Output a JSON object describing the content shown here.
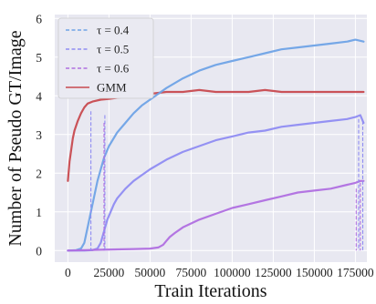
{
  "chart_data": {
    "type": "line",
    "xlabel": "Train Iterations",
    "ylabel": "Number of Pseudo GT/Image",
    "xlim": [
      -8000,
      182000
    ],
    "ylim": [
      -0.3,
      6.1
    ],
    "x_ticks": [
      0,
      25000,
      50000,
      75000,
      100000,
      125000,
      150000,
      175000
    ],
    "x_tick_labels": [
      "0",
      "25000",
      "50000",
      "75000",
      "100000",
      "125000",
      "150000",
      "175000"
    ],
    "y_ticks": [
      0,
      1,
      2,
      3,
      4,
      5,
      6
    ],
    "y_tick_labels": [
      "0",
      "1",
      "2",
      "3",
      "4",
      "5",
      "6"
    ],
    "grid": true,
    "background": "#e8e8f1",
    "legend_position": "top-left",
    "series": [
      {
        "name": "τ = 0.4",
        "legend_label": "τ = 0.4",
        "style": "dashed",
        "color": "#6fa3e6",
        "x": [
          0,
          5000,
          8000,
          10000,
          12000,
          14000,
          16000,
          18000,
          20000,
          22000,
          25000,
          30000,
          35000,
          40000,
          45000,
          50000,
          60000,
          70000,
          80000,
          90000,
          100000,
          110000,
          120000,
          130000,
          140000,
          150000,
          160000,
          170000,
          175000,
          180000
        ],
        "y": [
          0,
          0.01,
          0.05,
          0.2,
          0.6,
          1.0,
          1.4,
          1.8,
          2.1,
          2.4,
          2.7,
          3.05,
          3.3,
          3.55,
          3.75,
          3.9,
          4.2,
          4.45,
          4.65,
          4.8,
          4.9,
          5.0,
          5.1,
          5.2,
          5.25,
          5.3,
          5.35,
          5.4,
          5.45,
          5.4
        ]
      },
      {
        "name": "τ = 0.5",
        "legend_label": "τ = 0.5",
        "style": "dashed",
        "color": "#8f8cf2",
        "x": [
          0,
          10000,
          15000,
          18000,
          20000,
          22000,
          24000,
          26000,
          28000,
          30000,
          35000,
          40000,
          45000,
          50000,
          60000,
          70000,
          80000,
          90000,
          100000,
          110000,
          120000,
          130000,
          140000,
          150000,
          160000,
          170000,
          175000,
          178000,
          180000
        ],
        "y": [
          0,
          0,
          0.01,
          0.05,
          0.2,
          0.5,
          0.8,
          1.0,
          1.2,
          1.35,
          1.6,
          1.8,
          1.95,
          2.1,
          2.35,
          2.55,
          2.7,
          2.85,
          2.95,
          3.05,
          3.1,
          3.2,
          3.25,
          3.3,
          3.35,
          3.4,
          3.45,
          3.5,
          3.3
        ]
      },
      {
        "name": "τ = 0.6",
        "legend_label": "τ = 0.6",
        "style": "dashed",
        "color": "#b06fe0",
        "x": [
          0,
          20000,
          40000,
          50000,
          55000,
          58000,
          60000,
          62000,
          65000,
          70000,
          75000,
          80000,
          90000,
          100000,
          110000,
          120000,
          130000,
          140000,
          150000,
          160000,
          170000,
          175000,
          178000,
          180000
        ],
        "y": [
          0,
          0.02,
          0.04,
          0.05,
          0.08,
          0.15,
          0.25,
          0.35,
          0.45,
          0.6,
          0.7,
          0.8,
          0.95,
          1.1,
          1.2,
          1.3,
          1.4,
          1.5,
          1.55,
          1.6,
          1.7,
          1.75,
          1.8,
          1.8
        ]
      },
      {
        "name": "GMM",
        "legend_label": "GMM",
        "style": "solid",
        "color": "#c84a4f",
        "x": [
          0,
          1000,
          2000,
          3000,
          4000,
          6000,
          8000,
          10000,
          12000,
          15000,
          20000,
          25000,
          30000,
          40000,
          50000,
          60000,
          70000,
          80000,
          90000,
          100000,
          110000,
          120000,
          130000,
          140000,
          150000,
          160000,
          170000,
          180000
        ],
        "y": [
          1.8,
          2.3,
          2.6,
          2.9,
          3.1,
          3.35,
          3.55,
          3.7,
          3.8,
          3.85,
          3.9,
          3.92,
          3.95,
          4.0,
          4.05,
          4.1,
          4.1,
          4.15,
          4.1,
          4.1,
          4.1,
          4.15,
          4.1,
          4.1,
          4.1,
          4.1,
          4.1,
          4.1
        ]
      }
    ],
    "drop_lines": [
      {
        "series": 1,
        "x": 14000,
        "y_top": 3.6
      },
      {
        "series": 1,
        "x": 22500,
        "y_top": 3.5
      },
      {
        "series": 1,
        "x": 177000,
        "y_top": 3.4
      },
      {
        "series": 1,
        "x": 179500,
        "y_top": 3.35
      },
      {
        "series": 2,
        "x": 22000,
        "y_top": 3.3
      },
      {
        "series": 2,
        "x": 175500,
        "y_top": 1.6
      },
      {
        "series": 2,
        "x": 178000,
        "y_top": 1.75
      }
    ]
  }
}
